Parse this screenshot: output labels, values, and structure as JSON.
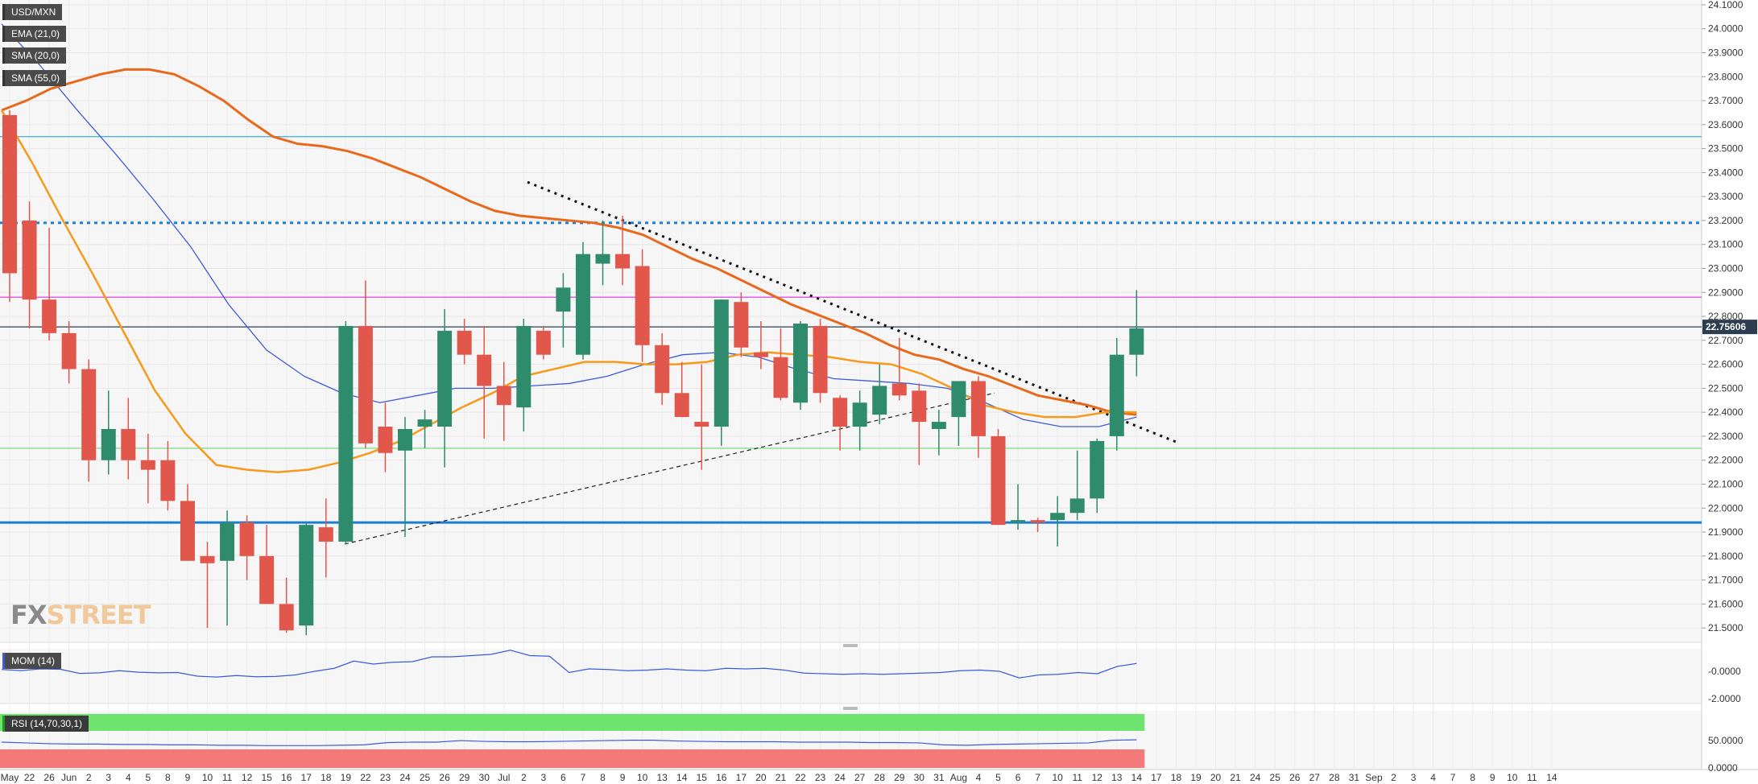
{
  "labels": {
    "symbol": "USD/MXN",
    "ema": "EMA (21,0)",
    "sma20": "SMA (20,0)",
    "sma55": "SMA (55,0)",
    "mom": "MOM (14)",
    "rsi": "RSI (14,70,30,1)"
  },
  "watermark": {
    "part1": "FX",
    "part2": "STREET"
  },
  "colors": {
    "bull": "#2e8b6b",
    "bear": "#e2574c",
    "ema": "#e8691c",
    "sma20": "#f59a1a",
    "sma55": "#3d5bd9",
    "support": "#1a7ed6",
    "resistance_dotted": "#1a7ed6",
    "top_line": "#3ab0e0",
    "magenta_line": "#e060e0",
    "green_line": "#8fe08f",
    "current_line": "#2b3d4f",
    "rsi_over": "#6ee36e",
    "rsi_under": "#f47a7a"
  },
  "chart_data": {
    "type": "candlestick",
    "symbol": "USD/MXN",
    "y_ticks": [
      "24.1000",
      "24.0000",
      "23.9000",
      "23.8000",
      "23.7000",
      "23.6000",
      "23.5000",
      "23.4000",
      "23.3000",
      "23.2000",
      "23.1000",
      "23.0000",
      "22.9000",
      "22.8000",
      "22.7000",
      "22.6000",
      "22.5000",
      "22.4000",
      "22.3000",
      "22.2000",
      "22.1000",
      "22.0000",
      "21.9000",
      "21.8000",
      "21.7000",
      "21.6000",
      "21.5000"
    ],
    "ylim": [
      21.44,
      24.12
    ],
    "current_price": "22.75606",
    "x_ticks": [
      "May",
      "22",
      "26",
      "Jun",
      "2",
      "3",
      "4",
      "5",
      "8",
      "9",
      "10",
      "11",
      "12",
      "15",
      "16",
      "17",
      "18",
      "19",
      "22",
      "23",
      "24",
      "25",
      "26",
      "29",
      "30",
      "Jul",
      "2",
      "3",
      "6",
      "7",
      "8",
      "9",
      "10",
      "13",
      "14",
      "15",
      "16",
      "17",
      "20",
      "21",
      "22",
      "23",
      "24",
      "27",
      "28",
      "29",
      "30",
      "31",
      "Aug",
      "4",
      "5",
      "6",
      "7",
      "10",
      "11",
      "12",
      "13",
      "14",
      "17",
      "18",
      "19",
      "20",
      "21",
      "24",
      "25",
      "26",
      "27",
      "28",
      "31",
      "Sep",
      "2",
      "3",
      "4",
      "7",
      "8",
      "9",
      "10",
      "11",
      "14"
    ],
    "candles": [
      {
        "o": 23.64,
        "h": 23.66,
        "l": 22.86,
        "c": 22.98
      },
      {
        "o": 23.2,
        "h": 23.28,
        "l": 22.75,
        "c": 22.87
      },
      {
        "o": 22.87,
        "h": 23.17,
        "l": 22.7,
        "c": 22.73
      },
      {
        "o": 22.73,
        "h": 22.78,
        "l": 22.52,
        "c": 22.58
      },
      {
        "o": 22.58,
        "h": 22.62,
        "l": 22.11,
        "c": 22.2
      },
      {
        "o": 22.2,
        "h": 22.49,
        "l": 22.14,
        "c": 22.33
      },
      {
        "o": 22.33,
        "h": 22.46,
        "l": 22.12,
        "c": 22.2
      },
      {
        "o": 22.2,
        "h": 22.31,
        "l": 22.02,
        "c": 22.16
      },
      {
        "o": 22.2,
        "h": 22.28,
        "l": 21.99,
        "c": 22.03
      },
      {
        "o": 22.03,
        "h": 22.1,
        "l": 21.8,
        "c": 21.78
      },
      {
        "o": 21.8,
        "h": 21.86,
        "l": 21.5,
        "c": 21.77
      },
      {
        "o": 21.78,
        "h": 21.99,
        "l": 21.51,
        "c": 21.94
      },
      {
        "o": 21.94,
        "h": 21.97,
        "l": 21.7,
        "c": 21.8
      },
      {
        "o": 21.8,
        "h": 21.93,
        "l": 21.6,
        "c": 21.6
      },
      {
        "o": 21.6,
        "h": 21.71,
        "l": 21.48,
        "c": 21.49
      },
      {
        "o": 21.51,
        "h": 21.94,
        "l": 21.47,
        "c": 21.93
      },
      {
        "o": 21.92,
        "h": 22.04,
        "l": 21.71,
        "c": 21.86
      },
      {
        "o": 21.86,
        "h": 22.78,
        "l": 21.85,
        "c": 22.76
      },
      {
        "o": 22.76,
        "h": 22.95,
        "l": 22.25,
        "c": 22.27
      },
      {
        "o": 22.34,
        "h": 22.44,
        "l": 22.15,
        "c": 22.23
      },
      {
        "o": 22.24,
        "h": 22.38,
        "l": 21.88,
        "c": 22.33
      },
      {
        "o": 22.34,
        "h": 22.41,
        "l": 22.25,
        "c": 22.37
      },
      {
        "o": 22.34,
        "h": 22.83,
        "l": 22.17,
        "c": 22.74
      },
      {
        "o": 22.74,
        "h": 22.79,
        "l": 22.6,
        "c": 22.64
      },
      {
        "o": 22.64,
        "h": 22.76,
        "l": 22.29,
        "c": 22.51
      },
      {
        "o": 22.51,
        "h": 22.61,
        "l": 22.28,
        "c": 22.43
      },
      {
        "o": 22.42,
        "h": 22.79,
        "l": 22.32,
        "c": 22.76
      },
      {
        "o": 22.74,
        "h": 22.76,
        "l": 22.62,
        "c": 22.64
      },
      {
        "o": 22.82,
        "h": 22.98,
        "l": 22.67,
        "c": 22.92
      },
      {
        "o": 22.64,
        "h": 23.11,
        "l": 22.62,
        "c": 23.06
      },
      {
        "o": 23.02,
        "h": 23.2,
        "l": 22.93,
        "c": 23.06
      },
      {
        "o": 23.06,
        "h": 23.22,
        "l": 22.93,
        "c": 23.0
      },
      {
        "o": 23.01,
        "h": 23.08,
        "l": 22.61,
        "c": 22.68
      },
      {
        "o": 22.68,
        "h": 22.73,
        "l": 22.43,
        "c": 22.48
      },
      {
        "o": 22.48,
        "h": 22.61,
        "l": 22.38,
        "c": 22.38
      },
      {
        "o": 22.36,
        "h": 22.6,
        "l": 22.16,
        "c": 22.34
      },
      {
        "o": 22.34,
        "h": 22.87,
        "l": 22.26,
        "c": 22.87
      },
      {
        "o": 22.86,
        "h": 22.9,
        "l": 22.63,
        "c": 22.67
      },
      {
        "o": 22.65,
        "h": 22.78,
        "l": 22.58,
        "c": 22.63
      },
      {
        "o": 22.63,
        "h": 22.75,
        "l": 22.45,
        "c": 22.46
      },
      {
        "o": 22.44,
        "h": 22.78,
        "l": 22.41,
        "c": 22.77
      },
      {
        "o": 22.76,
        "h": 22.79,
        "l": 22.44,
        "c": 22.48
      },
      {
        "o": 22.46,
        "h": 22.47,
        "l": 22.24,
        "c": 22.34
      },
      {
        "o": 22.34,
        "h": 22.49,
        "l": 22.24,
        "c": 22.44
      },
      {
        "o": 22.39,
        "h": 22.6,
        "l": 22.35,
        "c": 22.51
      },
      {
        "o": 22.52,
        "h": 22.71,
        "l": 22.45,
        "c": 22.47
      },
      {
        "o": 22.49,
        "h": 22.52,
        "l": 22.18,
        "c": 22.36
      },
      {
        "o": 22.33,
        "h": 22.41,
        "l": 22.22,
        "c": 22.36
      },
      {
        "o": 22.38,
        "h": 22.52,
        "l": 22.26,
        "c": 22.53
      },
      {
        "o": 22.53,
        "h": 22.55,
        "l": 22.21,
        "c": 22.3
      },
      {
        "o": 22.3,
        "h": 22.33,
        "l": 21.93,
        "c": 21.93
      },
      {
        "o": 21.94,
        "h": 22.1,
        "l": 21.91,
        "c": 21.95
      },
      {
        "o": 21.95,
        "h": 21.96,
        "l": 21.9,
        "c": 21.94
      },
      {
        "o": 21.95,
        "h": 22.05,
        "l": 21.84,
        "c": 21.98
      },
      {
        "o": 21.98,
        "h": 22.24,
        "l": 21.95,
        "c": 22.04
      },
      {
        "o": 22.04,
        "h": 22.29,
        "l": 21.98,
        "c": 22.28
      },
      {
        "o": 22.3,
        "h": 22.71,
        "l": 22.24,
        "c": 22.64
      },
      {
        "o": 22.64,
        "h": 22.91,
        "l": 22.55,
        "c": 22.75
      }
    ],
    "ema_21": [
      23.66,
      23.7,
      23.75,
      23.78,
      23.81,
      23.83,
      23.83,
      23.81,
      23.76,
      23.7,
      23.62,
      23.55,
      23.52,
      23.51,
      23.49,
      23.46,
      23.42,
      23.38,
      23.33,
      23.28,
      23.24,
      23.22,
      23.21,
      23.2,
      23.19,
      23.17,
      23.14,
      23.09,
      23.04,
      23.0,
      22.95,
      22.9,
      22.85,
      22.81,
      22.77,
      22.73,
      22.68,
      22.64,
      22.62,
      22.58,
      22.55,
      22.51,
      22.47,
      22.45,
      22.43,
      22.4,
      22.39
    ],
    "sma_20": [
      23.66,
      23.44,
      23.2,
      22.97,
      22.73,
      22.49,
      22.31,
      22.18,
      22.16,
      22.15,
      22.16,
      22.19,
      22.23,
      22.28,
      22.35,
      22.42,
      22.48,
      22.55,
      22.58,
      22.61,
      22.61,
      22.6,
      22.6,
      22.61,
      22.64,
      22.65,
      22.64,
      22.63,
      22.61,
      22.6,
      22.56,
      22.5,
      22.43,
      22.4,
      22.38,
      22.38,
      22.4,
      22.4
    ],
    "sma_55": [
      24.02,
      23.85,
      23.66,
      23.48,
      23.29,
      23.09,
      22.85,
      22.66,
      22.55,
      22.48,
      22.44,
      22.47,
      22.5,
      22.5,
      22.51,
      22.52,
      22.55,
      22.6,
      22.64,
      22.65,
      22.63,
      22.58,
      22.54,
      22.53,
      22.52,
      22.5,
      22.44,
      22.37,
      22.34,
      22.34,
      22.38
    ],
    "mom_14": [
      0.3,
      0.12,
      0.4,
      0.33,
      -0.35,
      -0.25,
      0.1,
      -0.15,
      -0.25,
      -0.2,
      -0.8,
      -0.95,
      -0.7,
      -0.9,
      -0.85,
      -0.6,
      0.0,
      0.5,
      1.7,
      1.2,
      1.5,
      1.6,
      2.4,
      2.4,
      2.6,
      2.8,
      3.5,
      2.6,
      2.5,
      -0.2,
      0.4,
      0.3,
      0.1,
      0.2,
      0.4,
      0.2,
      0.1,
      0.5,
      0.4,
      0.5,
      0.2,
      -0.3,
      -0.4,
      -0.5,
      -0.4,
      -0.5,
      -0.4,
      -0.3,
      -0.2,
      0.1,
      0.2,
      0.0,
      -1.1,
      -0.6,
      -0.5,
      -0.2,
      -0.4,
      0.8,
      1.3
    ],
    "mom_ticks": [
      "-0.0000",
      "-2.0000"
    ],
    "rsi_14": [
      50,
      48,
      46,
      45,
      45,
      44,
      44,
      43,
      43,
      42,
      42,
      41,
      41,
      41,
      42,
      43,
      49,
      50,
      50,
      54,
      52,
      51,
      51,
      52,
      53,
      54,
      55,
      55,
      53,
      52,
      51,
      51,
      51,
      50,
      50,
      50,
      49,
      49,
      48,
      43,
      42,
      44,
      45,
      46,
      47,
      48,
      55,
      56
    ],
    "rsi_ticks": [
      "50.0000",
      "0.0000"
    ],
    "trendlines": [
      {
        "name": "descending",
        "style": "dotted"
      },
      {
        "name": "ascending",
        "style": "dashed"
      }
    ],
    "horizontal_levels": [
      23.55,
      23.19,
      22.88,
      22.756,
      22.25,
      21.94
    ]
  }
}
